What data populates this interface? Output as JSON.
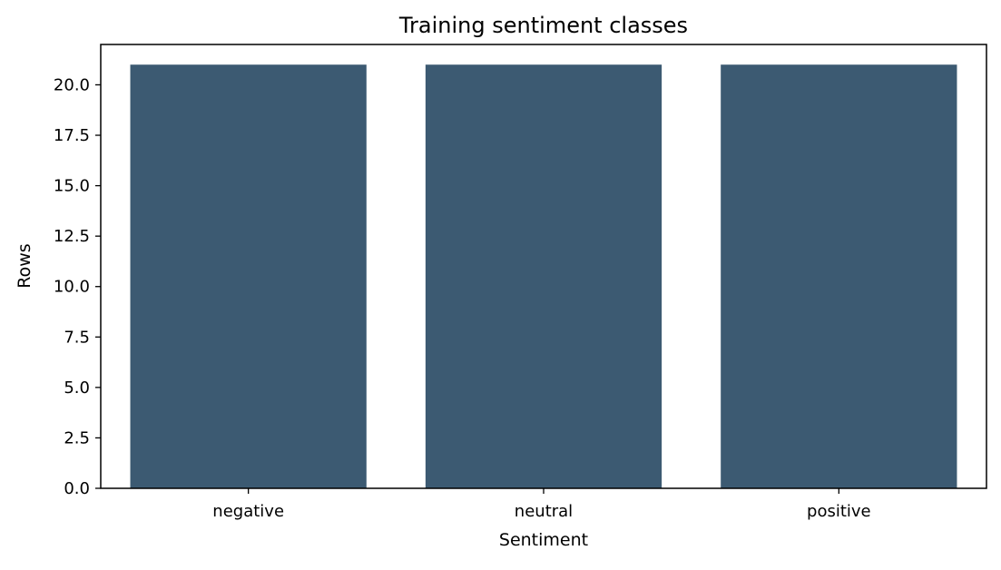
{
  "chart_data": {
    "type": "bar",
    "title": "Training sentiment classes",
    "xlabel": "Sentiment",
    "ylabel": "Rows",
    "categories": [
      "negative",
      "neutral",
      "positive"
    ],
    "values": [
      21,
      21,
      21
    ],
    "ylim": [
      0,
      22
    ],
    "yticks": [
      0,
      2.5,
      5,
      7.5,
      10,
      12.5,
      15,
      17.5,
      20
    ],
    "grid": false,
    "bar_color": "#3c5a72"
  }
}
